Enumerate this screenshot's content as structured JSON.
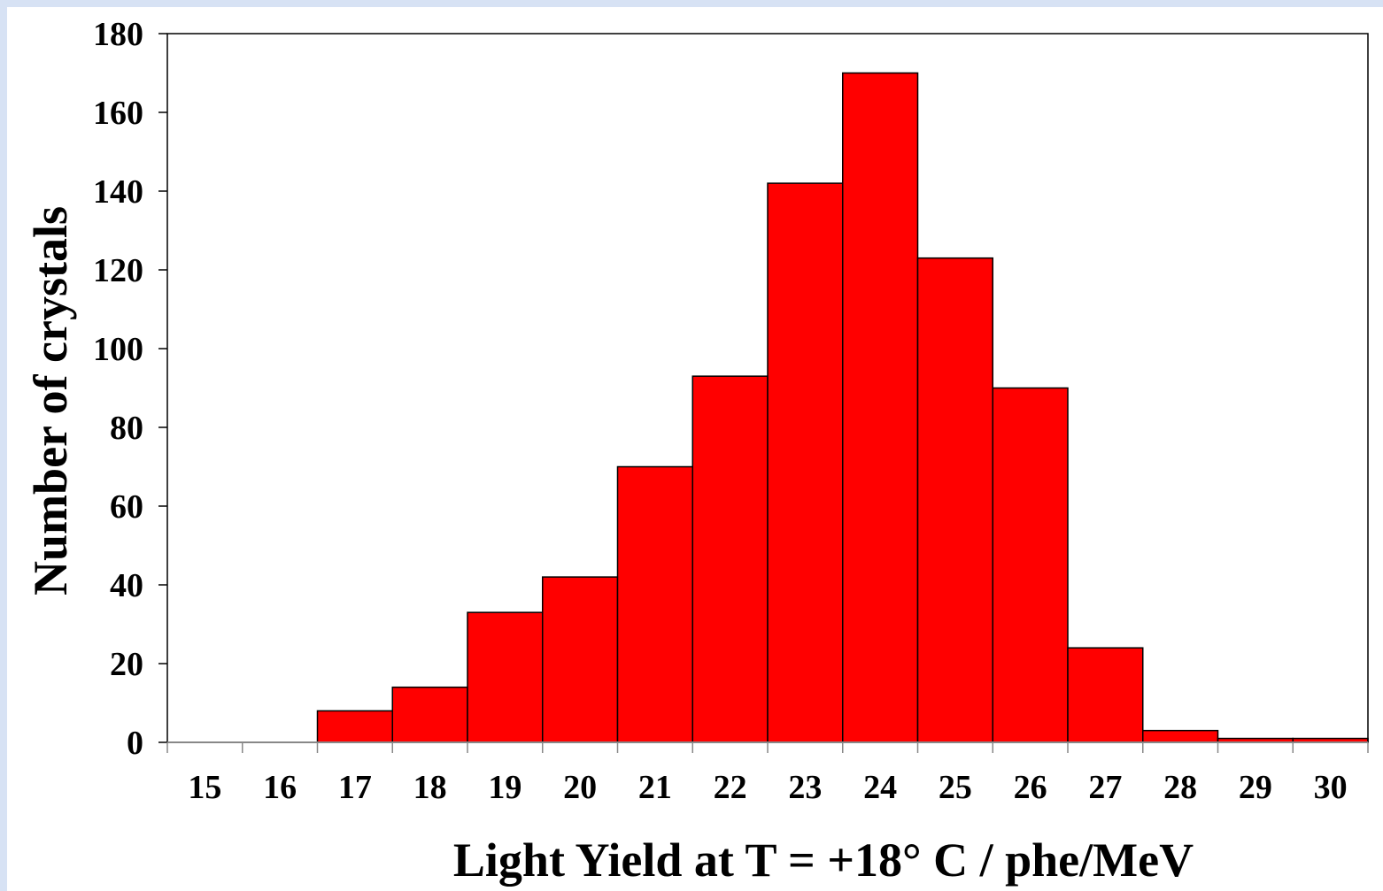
{
  "chart_data": {
    "type": "bar",
    "categories": [
      "15",
      "16",
      "17",
      "18",
      "19",
      "20",
      "21",
      "22",
      "23",
      "24",
      "25",
      "26",
      "27",
      "28",
      "29",
      "30"
    ],
    "values": [
      0,
      0,
      8,
      14,
      33,
      42,
      70,
      93,
      142,
      170,
      123,
      90,
      24,
      3,
      1,
      1
    ],
    "xlabel": "Light Yield at T = +18° C / phe/MeV",
    "ylabel": "Number of crystals",
    "ylim": [
      0,
      180
    ],
    "yticks": [
      "0",
      "20",
      "40",
      "60",
      "80",
      "100",
      "120",
      "140",
      "160",
      "180"
    ],
    "bar_color": "#ff0000",
    "grid": false
  }
}
